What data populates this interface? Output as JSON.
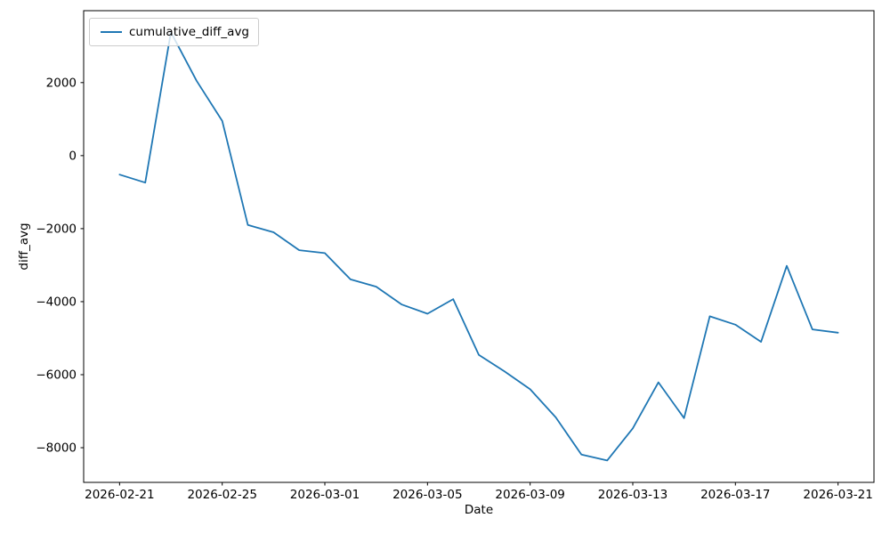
{
  "chart_data": {
    "type": "line",
    "xlabel": "Date",
    "ylabel": "diff_avg",
    "legend_position": "upper left",
    "grid": false,
    "background": "#ffffff",
    "axis_color": "#000000",
    "x": [
      "2026-02-21",
      "2026-02-22",
      "2026-02-23",
      "2026-02-24",
      "2026-02-25",
      "2026-02-26",
      "2026-02-27",
      "2026-02-28",
      "2026-03-01",
      "2026-03-02",
      "2026-03-03",
      "2026-03-04",
      "2026-03-05",
      "2026-03-06",
      "2026-03-07",
      "2026-03-08",
      "2026-03-09",
      "2026-03-10",
      "2026-03-11",
      "2026-03-12",
      "2026-03-13",
      "2026-03-14",
      "2026-03-15",
      "2026-03-16",
      "2026-03-17",
      "2026-03-18",
      "2026-03-19",
      "2026-03-20",
      "2026-03-21"
    ],
    "series": [
      {
        "name": "cumulative_diff_avg",
        "color": "#1f77b4",
        "values": [
          -520,
          -740,
          3380,
          2050,
          950,
          -1900,
          -2100,
          -2590,
          -2670,
          -3390,
          -3590,
          -4080,
          -4330,
          -3930,
          -5460,
          -5910,
          -6400,
          -7170,
          -8190,
          -8350,
          -7470,
          -6210,
          -7190,
          -4400,
          -4630,
          -5100,
          -3020,
          -4760,
          -4850
        ]
      }
    ],
    "x_tick_labels": [
      "2026-02-21",
      "2026-02-25",
      "2026-03-01",
      "2026-03-05",
      "2026-03-09",
      "2026-03-13",
      "2026-03-17",
      "2026-03-21"
    ],
    "y_tick_values": [
      2000,
      0,
      -2000,
      -4000,
      -6000,
      -8000
    ],
    "ylim": [
      -8950,
      3970
    ],
    "x_margin_days": 1.4
  }
}
